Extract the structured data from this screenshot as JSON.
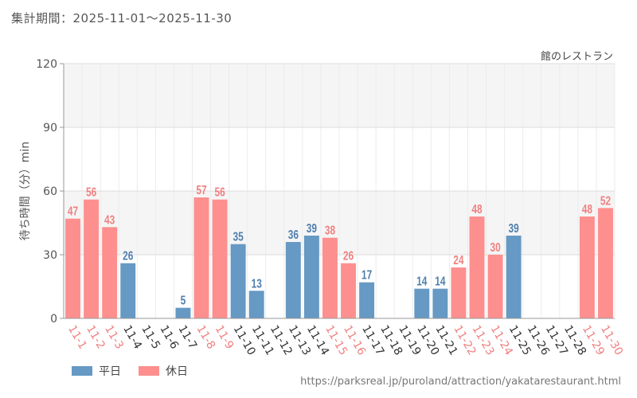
{
  "header": {
    "period": "集計期間：2025-11-01〜2025-11-30"
  },
  "chart_data": {
    "type": "bar",
    "title": "館のレストラン",
    "ylabel": "待ち時間（分）min",
    "xlabel": "",
    "ylim": [
      0,
      120
    ],
    "yticks": [
      0,
      30,
      60,
      90,
      120
    ],
    "categories": [
      "11-1",
      "11-2",
      "11-3",
      "11-4",
      "11-5",
      "11-6",
      "11-7",
      "11-8",
      "11-9",
      "11-10",
      "11-11",
      "11-12",
      "11-13",
      "11-14",
      "11-15",
      "11-16",
      "11-17",
      "11-18",
      "11-19",
      "11-20",
      "11-21",
      "11-22",
      "11-23",
      "11-24",
      "11-25",
      "11-26",
      "11-27",
      "11-28",
      "11-29",
      "11-30"
    ],
    "values": [
      47,
      56,
      43,
      26,
      null,
      null,
      5,
      57,
      56,
      35,
      13,
      null,
      36,
      39,
      38,
      26,
      17,
      null,
      null,
      14,
      14,
      24,
      48,
      30,
      39,
      null,
      null,
      null,
      48,
      52
    ],
    "day_type": [
      "holiday",
      "holiday",
      "holiday",
      "weekday",
      "weekday",
      "weekday",
      "weekday",
      "holiday",
      "holiday",
      "weekday",
      "weekday",
      "weekday",
      "weekday",
      "weekday",
      "holiday",
      "holiday",
      "weekday",
      "weekday",
      "weekday",
      "weekday",
      "weekday",
      "holiday",
      "holiday",
      "holiday",
      "weekday",
      "weekday",
      "weekday",
      "weekday",
      "holiday",
      "holiday"
    ],
    "series": [
      {
        "name": "平日",
        "key": "weekday",
        "color": "#6699c4",
        "label_color": "#4f7fae"
      },
      {
        "name": "休日",
        "key": "holiday",
        "color": "#fd8f8f",
        "label_color": "#f08080"
      }
    ],
    "legend_position": "bottom-left"
  },
  "footer": {
    "source_url": "https://parksreal.jp/puroland/attraction/yakatarestaurant.html"
  }
}
